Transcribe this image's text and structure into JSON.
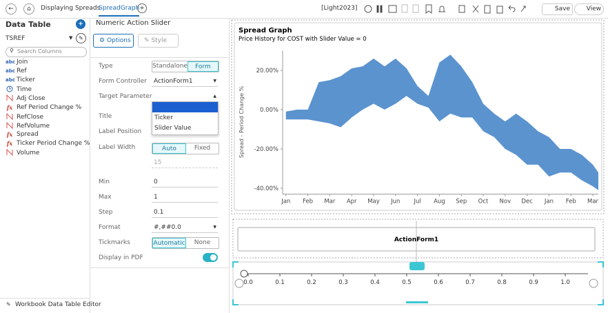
{
  "toolbar": {
    "breadcrumb": "Displaying Spreads",
    "tab": "SpreadGraph",
    "theme": "[Light2023]",
    "save": "Save",
    "view": "View"
  },
  "data_table": {
    "title": "Data Table",
    "source": "TSREF",
    "search_placeholder": "Search Columns",
    "columns": [
      "Join",
      "Ref",
      "Ticker",
      "Time",
      "Adj Close",
      "Ref Period Change %",
      "RefClose",
      "RefVolume",
      "Spread",
      "Ticker Period Change %",
      "Volume"
    ],
    "icons": {
      "text": "abc",
      "formula": "fx"
    },
    "footer": "Workbook Data Table Editor"
  },
  "settings": {
    "title": "Numeric Action Slider",
    "tabs": [
      "Options",
      "Style"
    ],
    "type": {
      "label": "Type",
      "options": [
        "Standalone",
        "Form"
      ]
    },
    "form_controller": {
      "label": "Form Controller",
      "value": "ActionForm1"
    },
    "target_parameter": {
      "label": "Target Parameter",
      "options": [
        "Ticker",
        "Slider Value"
      ]
    },
    "title_field": {
      "label": "Title"
    },
    "label_position": {
      "label": "Label Position"
    },
    "label_width": {
      "label": "Label Width",
      "options": [
        "Auto",
        "Fixed"
      ],
      "value": 15
    },
    "min": {
      "label": "Min",
      "value": 0
    },
    "max": {
      "label": "Max",
      "value": 1
    },
    "step": {
      "label": "Step",
      "value": 0.1
    },
    "format": {
      "label": "Format",
      "value": "#,##0.0"
    },
    "tickmarks": {
      "label": "Tickmarks",
      "options": [
        "Automatic",
        "None"
      ]
    },
    "display_pdf": {
      "label": "Display in PDF"
    }
  },
  "chart_data": {
    "type": "area",
    "title": "Spread Graph",
    "subtitle": "Price History for COST with Slider Value = 0",
    "y_label": "Spread - Period Change %",
    "color": "#5b93cf",
    "x": [
      0,
      0.5,
      1,
      1.5,
      2,
      2.5,
      3,
      3.5,
      4,
      4.5,
      5,
      5.5,
      6,
      6.5,
      7,
      7.5,
      8,
      8.5,
      9,
      9.5,
      10,
      10.5,
      11,
      11.5,
      12,
      12.5,
      13,
      13.5,
      14,
      14.25
    ],
    "upper": [
      -1,
      0,
      0,
      14,
      15,
      17,
      21,
      22,
      26,
      22,
      26,
      21,
      12,
      7,
      24,
      28,
      22,
      14,
      3,
      -2,
      -6,
      -2,
      -6,
      -11,
      -14,
      -20,
      -20,
      -23,
      -28,
      -32
    ],
    "lower": [
      -5,
      -5,
      -5,
      -6,
      -7,
      -9,
      -4,
      0,
      3,
      0,
      3,
      7,
      3,
      1,
      -6,
      -2,
      -4,
      -4,
      -11,
      -14,
      -20,
      -23,
      -28,
      -28,
      -34,
      -32,
      -32,
      -36,
      -39,
      -41
    ],
    "xlim": [
      -0.15,
      14.25
    ],
    "ylim": [
      -43,
      30
    ],
    "xticks": [
      {
        "value": 0,
        "label": "Jan"
      },
      {
        "value": 1,
        "label": "Feb"
      },
      {
        "value": 2,
        "label": "Mar"
      },
      {
        "value": 3,
        "label": "Apr"
      },
      {
        "value": 4,
        "label": "May"
      },
      {
        "value": 5,
        "label": "Jun"
      },
      {
        "value": 6,
        "label": "Jul"
      },
      {
        "value": 7,
        "label": "Aug"
      },
      {
        "value": 8,
        "label": "Sep"
      },
      {
        "value": 9,
        "label": "Oct"
      },
      {
        "value": 10,
        "label": "Nov"
      },
      {
        "value": 11,
        "label": "Dec"
      },
      {
        "value": 12,
        "label": "Jan"
      },
      {
        "value": 13,
        "label": "Feb"
      },
      {
        "value": 14,
        "label": "Mar"
      }
    ],
    "yticks": [
      {
        "value": 20,
        "label": "20.00%"
      },
      {
        "value": 0,
        "label": "0.00%"
      },
      {
        "value": -20,
        "label": "-20.00%"
      },
      {
        "value": -40,
        "label": "-40.00%"
      }
    ]
  },
  "action_form": {
    "title": "ActionForm1"
  },
  "slider": {
    "value": 0,
    "xlim": [
      0,
      1
    ],
    "xticks": [
      {
        "value": 0,
        "label": "0.0"
      },
      {
        "value": 0.1,
        "label": "0.1"
      },
      {
        "value": 0.2,
        "label": "0.2"
      },
      {
        "value": 0.3,
        "label": "0.3"
      },
      {
        "value": 0.4,
        "label": "0.4"
      },
      {
        "value": 0.5,
        "label": "0.5"
      },
      {
        "value": 0.6,
        "label": "0.6"
      },
      {
        "value": 0.7,
        "label": "0.7"
      },
      {
        "value": 0.8,
        "label": "0.8"
      },
      {
        "value": 0.9,
        "label": "0.9"
      },
      {
        "value": 1,
        "label": "1.0"
      }
    ]
  }
}
